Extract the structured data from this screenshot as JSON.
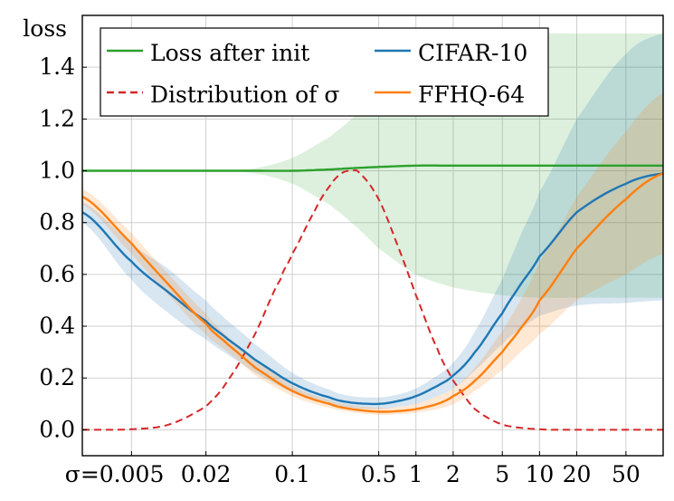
{
  "chart_data": {
    "type": "line",
    "ylabel": "loss",
    "x_scale": "log",
    "x_range": [
      0.002,
      100
    ],
    "ylim": [
      -0.1,
      1.6
    ],
    "grid": true,
    "legend_position": "top-left",
    "x_tick_labels": [
      {
        "value": 0.005,
        "label": "σ=0.005"
      },
      {
        "value": 0.02,
        "label": "0.02"
      },
      {
        "value": 0.1,
        "label": "0.1"
      },
      {
        "value": 0.5,
        "label": "0.5"
      },
      {
        "value": 1,
        "label": "1"
      },
      {
        "value": 2,
        "label": "2"
      },
      {
        "value": 5,
        "label": "5"
      },
      {
        "value": 10,
        "label": "10"
      },
      {
        "value": 20,
        "label": "20"
      },
      {
        "value": 50,
        "label": "50"
      }
    ],
    "y_ticks": [
      0.0,
      0.2,
      0.4,
      0.6,
      0.8,
      1.0,
      1.2,
      1.4
    ],
    "y_tick_labels": [
      "0.0",
      "0.2",
      "0.4",
      "0.6",
      "0.8",
      "1.0",
      "1.2",
      "1.4"
    ],
    "series": [
      {
        "name": "Loss after init",
        "color": "#2ca02c",
        "style": "solid",
        "x": [
          0.002,
          0.005,
          0.01,
          0.02,
          0.05,
          0.1,
          0.2,
          0.3,
          0.5,
          1,
          2,
          5,
          10,
          20,
          50,
          100
        ],
        "y": [
          1.0,
          1.0,
          1.0,
          1.0,
          1.0,
          1.0,
          1.005,
          1.01,
          1.015,
          1.02,
          1.02,
          1.02,
          1.02,
          1.02,
          1.02,
          1.02
        ],
        "band_upper": [
          1.0,
          1.0,
          1.0,
          1.0,
          1.01,
          1.05,
          1.13,
          1.2,
          1.3,
          1.4,
          1.48,
          1.52,
          1.53,
          1.53,
          1.53,
          1.53
        ],
        "band_lower": [
          1.0,
          1.0,
          1.0,
          1.0,
          0.99,
          0.95,
          0.87,
          0.8,
          0.7,
          0.6,
          0.55,
          0.52,
          0.51,
          0.51,
          0.51,
          0.51
        ]
      },
      {
        "name": "Distribution of σ",
        "color": "#d62728",
        "style": "dashed",
        "x": [
          0.002,
          0.005,
          0.01,
          0.02,
          0.03,
          0.05,
          0.08,
          0.1,
          0.15,
          0.2,
          0.25,
          0.3,
          0.35,
          0.5,
          0.7,
          1,
          1.5,
          2,
          3,
          5,
          10,
          20,
          50,
          100
        ],
        "y": [
          0.0,
          0.002,
          0.02,
          0.09,
          0.19,
          0.37,
          0.58,
          0.68,
          0.84,
          0.94,
          0.99,
          1.0,
          0.99,
          0.89,
          0.72,
          0.52,
          0.31,
          0.19,
          0.08,
          0.02,
          0.002,
          0.0,
          0.0,
          0.0
        ]
      },
      {
        "name": "CIFAR-10",
        "color": "#1f77b4",
        "style": "solid",
        "x": [
          0.002,
          0.005,
          0.01,
          0.02,
          0.03,
          0.05,
          0.1,
          0.2,
          0.3,
          0.5,
          0.7,
          1,
          1.5,
          2,
          3,
          5,
          7,
          10,
          20,
          50,
          100
        ],
        "y": [
          0.84,
          0.65,
          0.53,
          0.42,
          0.35,
          0.27,
          0.18,
          0.125,
          0.105,
          0.1,
          0.11,
          0.13,
          0.17,
          0.21,
          0.3,
          0.45,
          0.56,
          0.67,
          0.84,
          0.95,
          0.99
        ],
        "band_upper": [
          0.88,
          0.72,
          0.62,
          0.5,
          0.42,
          0.33,
          0.22,
          0.155,
          0.13,
          0.125,
          0.135,
          0.16,
          0.21,
          0.26,
          0.38,
          0.58,
          0.75,
          0.92,
          1.2,
          1.45,
          1.53
        ],
        "band_lower": [
          0.8,
          0.58,
          0.45,
          0.35,
          0.29,
          0.22,
          0.145,
          0.1,
          0.085,
          0.08,
          0.088,
          0.1,
          0.13,
          0.16,
          0.23,
          0.33,
          0.39,
          0.44,
          0.48,
          0.49,
          0.5
        ]
      },
      {
        "name": "FFHQ-64",
        "color": "#ff7f0e",
        "style": "solid",
        "x": [
          0.002,
          0.005,
          0.01,
          0.02,
          0.03,
          0.05,
          0.1,
          0.2,
          0.3,
          0.5,
          0.7,
          1,
          1.5,
          2,
          3,
          5,
          7,
          10,
          20,
          50,
          100
        ],
        "y": [
          0.9,
          0.72,
          0.56,
          0.41,
          0.33,
          0.24,
          0.15,
          0.1,
          0.08,
          0.07,
          0.072,
          0.08,
          0.1,
          0.13,
          0.19,
          0.3,
          0.39,
          0.5,
          0.7,
          0.89,
          0.99
        ],
        "band_upper": [
          0.93,
          0.76,
          0.6,
          0.45,
          0.36,
          0.27,
          0.17,
          0.115,
          0.095,
          0.085,
          0.088,
          0.1,
          0.13,
          0.16,
          0.24,
          0.38,
          0.5,
          0.65,
          0.9,
          1.15,
          1.3
        ],
        "band_lower": [
          0.87,
          0.68,
          0.52,
          0.37,
          0.3,
          0.21,
          0.13,
          0.085,
          0.068,
          0.058,
          0.06,
          0.066,
          0.08,
          0.1,
          0.15,
          0.23,
          0.3,
          0.37,
          0.5,
          0.6,
          0.68
        ]
      }
    ]
  }
}
